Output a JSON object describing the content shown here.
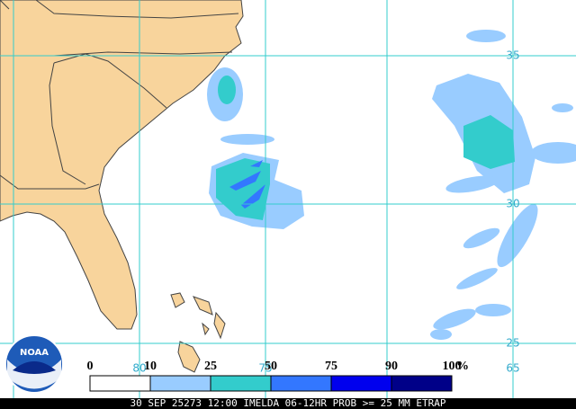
{
  "map": {
    "lat_labels": [
      35,
      30,
      25
    ],
    "lon_labels": [
      80,
      75,
      65
    ],
    "legend": {
      "labels": [
        0,
        10,
        25,
        50,
        75,
        90,
        100
      ],
      "unit": "%",
      "colors": [
        "#ffffff",
        "#99ccff",
        "#33cccc",
        "#3377ff",
        "#0000ee",
        "#000088"
      ]
    },
    "logo": "NOAA",
    "footer": "30 SEP 25273 12:00 IMELDA 06-12HR PROB >= 25 MM ETRAP"
  }
}
